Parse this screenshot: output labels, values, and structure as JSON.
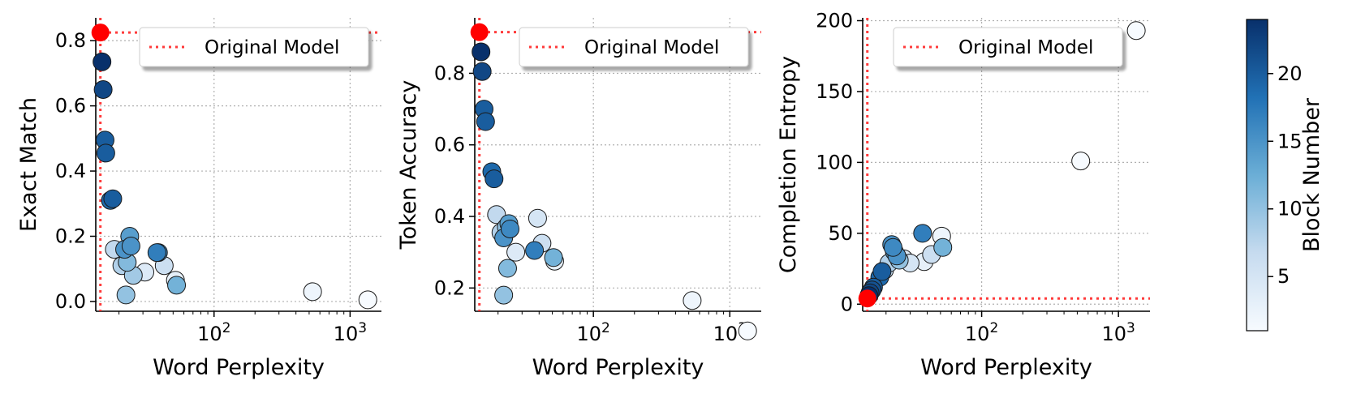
{
  "colors": {
    "reference_line": "#ff3b3b",
    "original_point": "#ff0000",
    "grid": "#b0b0b0",
    "colormap_low": "#f7fbff",
    "colormap_mid": "#6baed6",
    "colormap_high": "#08306b"
  },
  "colorbar": {
    "label": "Block Number",
    "range": [
      1,
      24
    ],
    "ticks": [
      "5",
      "10",
      "15",
      "20"
    ],
    "tick_values": [
      5,
      10,
      15,
      20
    ]
  },
  "chart_data": [
    {
      "type": "scatter",
      "xlabel": "Word Perplexity",
      "ylabel": "Exact Match",
      "xscale": "log",
      "xlim": [
        13.5,
        1700
      ],
      "ylim": [
        -0.03,
        0.87
      ],
      "xticks": [
        100,
        1000
      ],
      "yticks": [
        "0.0",
        "0.2",
        "0.4",
        "0.6",
        "0.8"
      ],
      "ytick_values": [
        0.0,
        0.2,
        0.4,
        0.6,
        0.8
      ],
      "legend": {
        "label": "Original Model",
        "placement": "top-right"
      },
      "original": {
        "x": 14.6,
        "y": 0.825
      },
      "points": [
        {
          "x": 15.0,
          "y": 0.735,
          "block": 24
        },
        {
          "x": 15.3,
          "y": 0.65,
          "block": 22
        },
        {
          "x": 15.8,
          "y": 0.495,
          "block": 20
        },
        {
          "x": 16.0,
          "y": 0.455,
          "block": 20
        },
        {
          "x": 17.3,
          "y": 0.31,
          "block": 19
        },
        {
          "x": 18.0,
          "y": 0.315,
          "block": 20
        },
        {
          "x": 18.5,
          "y": 0.16,
          "block": 7
        },
        {
          "x": 21.0,
          "y": 0.11,
          "block": 8
        },
        {
          "x": 22.0,
          "y": 0.16,
          "block": 15
        },
        {
          "x": 22.5,
          "y": 0.02,
          "block": 10
        },
        {
          "x": 23.0,
          "y": 0.12,
          "block": 11
        },
        {
          "x": 24.0,
          "y": 0.2,
          "block": 14
        },
        {
          "x": 24.5,
          "y": 0.17,
          "block": 15
        },
        {
          "x": 25.5,
          "y": 0.08,
          "block": 9
        },
        {
          "x": 31.0,
          "y": 0.09,
          "block": 4
        },
        {
          "x": 38.0,
          "y": 0.15,
          "block": 17
        },
        {
          "x": 39.0,
          "y": 0.15,
          "block": 16
        },
        {
          "x": 43.0,
          "y": 0.11,
          "block": 6
        },
        {
          "x": 52.0,
          "y": 0.065,
          "block": 3
        },
        {
          "x": 53.0,
          "y": 0.05,
          "block": 12
        },
        {
          "x": 530.0,
          "y": 0.03,
          "block": 2
        },
        {
          "x": 1350.0,
          "y": 0.005,
          "block": 1
        }
      ]
    },
    {
      "type": "scatter",
      "xlabel": "Word Perplexity",
      "ylabel": "Token Accuracy",
      "xscale": "log",
      "xlim": [
        13.5,
        1700
      ],
      "ylim": [
        0.135,
        0.955
      ],
      "xticks": [
        100,
        1000
      ],
      "yticks": [
        "0.2",
        "0.4",
        "0.6",
        "0.8"
      ],
      "ytick_values": [
        0.2,
        0.4,
        0.6,
        0.8
      ],
      "legend": {
        "label": "Original Model",
        "placement": "top-right"
      },
      "original": {
        "x": 14.6,
        "y": 0.915
      },
      "points": [
        {
          "x": 15.0,
          "y": 0.86,
          "block": 24
        },
        {
          "x": 15.3,
          "y": 0.805,
          "block": 22
        },
        {
          "x": 15.8,
          "y": 0.7,
          "block": 20
        },
        {
          "x": 16.2,
          "y": 0.665,
          "block": 20
        },
        {
          "x": 18.0,
          "y": 0.525,
          "block": 19
        },
        {
          "x": 18.7,
          "y": 0.505,
          "block": 20
        },
        {
          "x": 19.5,
          "y": 0.405,
          "block": 7
        },
        {
          "x": 21.0,
          "y": 0.355,
          "block": 8
        },
        {
          "x": 22.0,
          "y": 0.34,
          "block": 15
        },
        {
          "x": 23.0,
          "y": 0.37,
          "block": 10
        },
        {
          "x": 24.0,
          "y": 0.38,
          "block": 14
        },
        {
          "x": 24.5,
          "y": 0.365,
          "block": 16
        },
        {
          "x": 22.0,
          "y": 0.18,
          "block": 10
        },
        {
          "x": 23.5,
          "y": 0.255,
          "block": 11
        },
        {
          "x": 27.0,
          "y": 0.3,
          "block": 4
        },
        {
          "x": 37.0,
          "y": 0.305,
          "block": 17
        },
        {
          "x": 39.0,
          "y": 0.395,
          "block": 5
        },
        {
          "x": 42.0,
          "y": 0.325,
          "block": 6
        },
        {
          "x": 51.0,
          "y": 0.285,
          "block": 12
        },
        {
          "x": 52.0,
          "y": 0.275,
          "block": 3
        },
        {
          "x": 530.0,
          "y": 0.165,
          "block": 2
        },
        {
          "x": 1350.0,
          "y": 0.08,
          "block": 1
        }
      ]
    },
    {
      "type": "scatter",
      "xlabel": "Word Perplexity",
      "ylabel": "Completion Entropy",
      "xscale": "log",
      "xlim": [
        13.5,
        1700
      ],
      "ylim": [
        -5,
        202
      ],
      "xticks": [
        100,
        1000
      ],
      "yticks": [
        "0",
        "50",
        "100",
        "150",
        "200"
      ],
      "ytick_values": [
        0,
        50,
        100,
        150,
        200
      ],
      "legend": {
        "label": "Original Model",
        "placement": "top-left"
      },
      "original": {
        "x": 14.6,
        "y": 4
      },
      "points": [
        {
          "x": 15.0,
          "y": 6,
          "block": 24
        },
        {
          "x": 15.3,
          "y": 8,
          "block": 22
        },
        {
          "x": 15.8,
          "y": 10,
          "block": 21
        },
        {
          "x": 16.2,
          "y": 12,
          "block": 20
        },
        {
          "x": 18.0,
          "y": 19,
          "block": 19
        },
        {
          "x": 18.7,
          "y": 23,
          "block": 20
        },
        {
          "x": 19.5,
          "y": 24,
          "block": 7
        },
        {
          "x": 21.0,
          "y": 29,
          "block": 8
        },
        {
          "x": 22.0,
          "y": 42,
          "block": 15
        },
        {
          "x": 22.5,
          "y": 40,
          "block": 16
        },
        {
          "x": 23.0,
          "y": 37,
          "block": 14
        },
        {
          "x": 24.0,
          "y": 34,
          "block": 15
        },
        {
          "x": 25.0,
          "y": 31,
          "block": 10
        },
        {
          "x": 27.0,
          "y": 32,
          "block": 4
        },
        {
          "x": 30.0,
          "y": 29,
          "block": 5
        },
        {
          "x": 37.0,
          "y": 50,
          "block": 17
        },
        {
          "x": 38.0,
          "y": 30,
          "block": 3
        },
        {
          "x": 43.0,
          "y": 35,
          "block": 6
        },
        {
          "x": 51.0,
          "y": 48,
          "block": 2
        },
        {
          "x": 52.0,
          "y": 40,
          "block": 12
        },
        {
          "x": 530.0,
          "y": 101,
          "block": 1
        },
        {
          "x": 1350.0,
          "y": 193,
          "block": 1
        }
      ]
    }
  ]
}
